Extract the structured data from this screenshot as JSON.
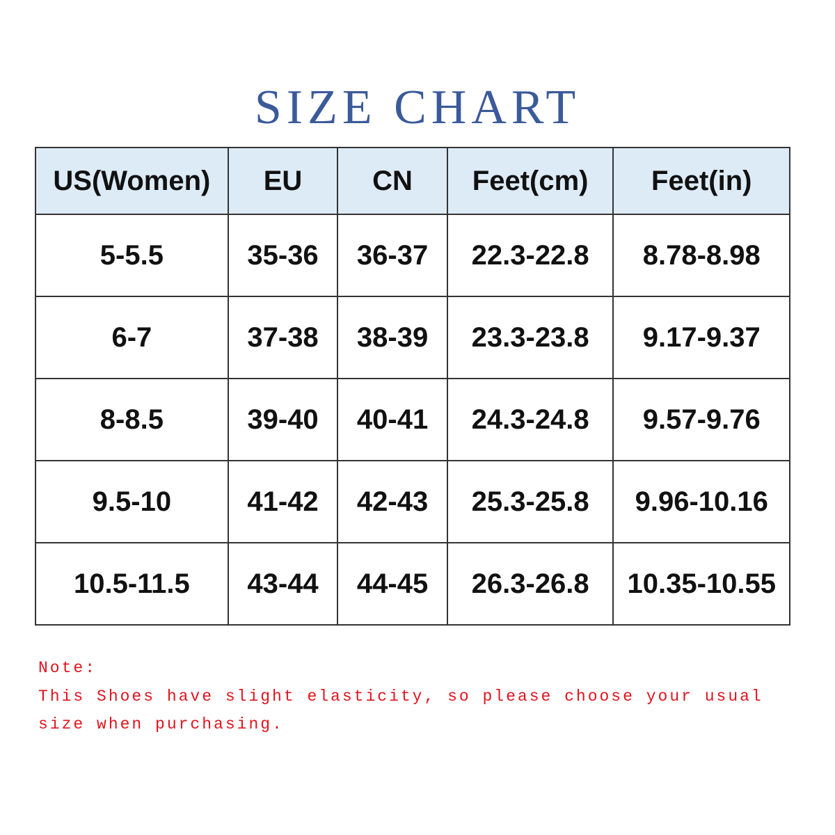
{
  "title": "SIZE CHART",
  "table": {
    "headers": [
      "US(Women)",
      "EU",
      "CN",
      "Feet(cm)",
      "Feet(in)"
    ],
    "rows": [
      [
        "5-5.5",
        "35-36",
        "36-37",
        "22.3-22.8",
        "8.78-8.98"
      ],
      [
        "6-7",
        "37-38",
        "38-39",
        "23.3-23.8",
        "9.17-9.37"
      ],
      [
        "8-8.5",
        "39-40",
        "40-41",
        "24.3-24.8",
        "9.57-9.76"
      ],
      [
        "9.5-10",
        "41-42",
        "42-43",
        "25.3-25.8",
        "9.96-10.16"
      ],
      [
        "10.5-11.5",
        "43-44",
        "44-45",
        "26.3-26.8",
        "10.35-10.55"
      ]
    ],
    "header_bg": "#ddebf7"
  },
  "note": {
    "label": "Note:",
    "line1": "This Shoes have slight elasticity, so please choose your usual",
    "line2": "size when purchasing.",
    "color": "#e0141e"
  },
  "title_color": "#3b5a9a"
}
